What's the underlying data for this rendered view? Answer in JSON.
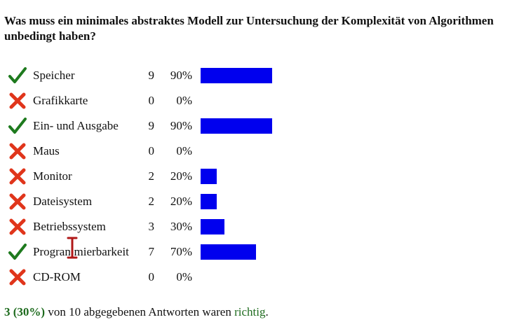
{
  "question": "Was muss ein minimales abstraktes Modell zur Untersuchung der Komplexität von Algorithmen unbedingt haben?",
  "answers": [
    {
      "label": "Speicher",
      "count": "9",
      "percent_text": "90%",
      "fraction": 0.9,
      "mark": "check-icon",
      "correct": true
    },
    {
      "label": "Grafikkarte",
      "count": "0",
      "percent_text": "0%",
      "fraction": 0.0,
      "mark": "cross-icon",
      "correct": false
    },
    {
      "label": "Ein- und Ausgabe",
      "count": "9",
      "percent_text": "90%",
      "fraction": 0.9,
      "mark": "check-icon",
      "correct": true
    },
    {
      "label": "Maus",
      "count": "0",
      "percent_text": "0%",
      "fraction": 0.0,
      "mark": "cross-icon",
      "correct": false
    },
    {
      "label": "Monitor",
      "count": "2",
      "percent_text": "20%",
      "fraction": 0.2,
      "mark": "cross-icon",
      "correct": false
    },
    {
      "label": "Dateisystem",
      "count": "2",
      "percent_text": "20%",
      "fraction": 0.2,
      "mark": "cross-icon",
      "correct": false
    },
    {
      "label": "Betriebssystem",
      "count": "3",
      "percent_text": "30%",
      "fraction": 0.3,
      "mark": "cross-icon",
      "correct": false
    },
    {
      "label": "Programmierbarkeit",
      "count": "7",
      "percent_text": "70%",
      "fraction": 0.7,
      "mark": "check-icon",
      "correct": true
    },
    {
      "label": "CD-ROM",
      "count": "0",
      "percent_text": "0%",
      "fraction": 0.0,
      "mark": "cross-icon",
      "correct": false
    }
  ],
  "summary": {
    "correct_stat": "3 (30%)",
    "middle": " von 10 abgegebenen Antworten waren ",
    "word": "richtig",
    "end": "."
  },
  "colors": {
    "bar": "#0000ee",
    "check": "#1e7a1e",
    "cross": "#e0351b",
    "summary_highlight": "#1e6b1e",
    "cursor": "#b01818"
  }
}
